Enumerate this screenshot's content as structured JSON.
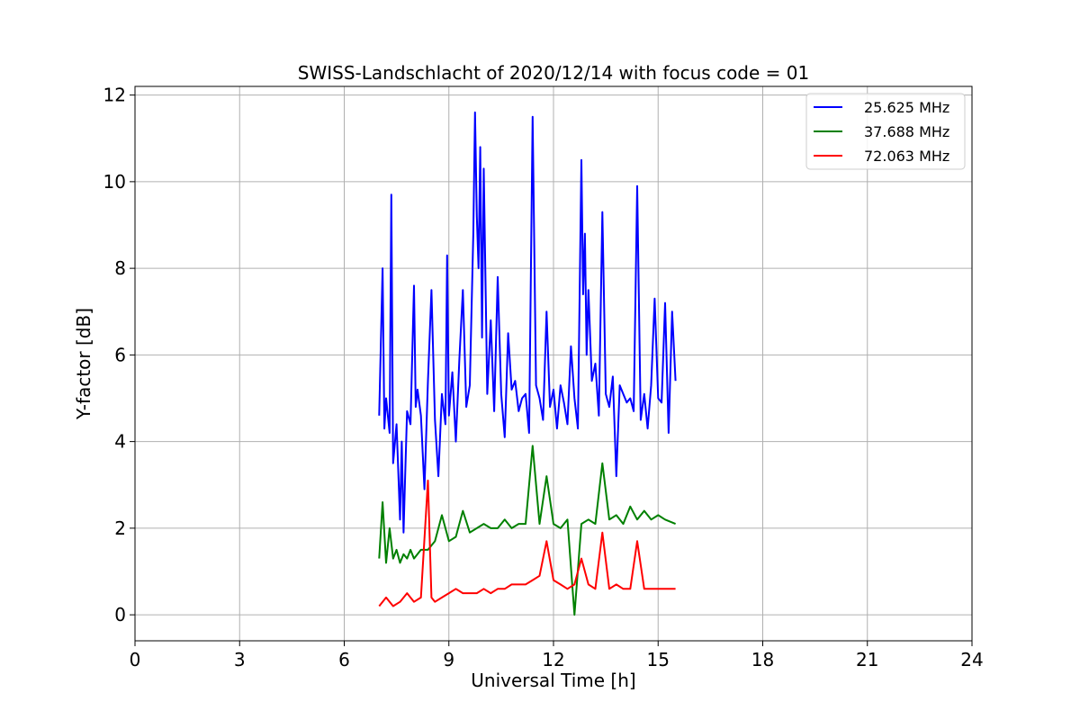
{
  "chart_data": {
    "type": "line",
    "title": "SWISS-Landschlacht of 2020/12/14 with focus code = 01",
    "xlabel": "Universal Time [h]",
    "ylabel": "Y-factor [dB]",
    "xlim": [
      0,
      24
    ],
    "ylim": [
      -0.6,
      12.2
    ],
    "xticks": [
      0,
      3,
      6,
      9,
      12,
      15,
      18,
      21,
      24
    ],
    "yticks": [
      0,
      2,
      4,
      6,
      8,
      10,
      12
    ],
    "grid": true,
    "legend_position": "top-right",
    "series": [
      {
        "name": "25.625 MHz",
        "color": "#0000ff",
        "x": [
          7.0,
          7.1,
          7.15,
          7.2,
          7.3,
          7.35,
          7.4,
          7.5,
          7.6,
          7.65,
          7.7,
          7.75,
          7.8,
          7.9,
          8.0,
          8.05,
          8.1,
          8.2,
          8.3,
          8.4,
          8.5,
          8.6,
          8.7,
          8.8,
          8.9,
          8.95,
          9.0,
          9.1,
          9.2,
          9.3,
          9.4,
          9.5,
          9.6,
          9.7,
          9.75,
          9.8,
          9.85,
          9.9,
          9.95,
          10.0,
          10.1,
          10.2,
          10.3,
          10.4,
          10.5,
          10.6,
          10.7,
          10.8,
          10.9,
          11.0,
          11.1,
          11.2,
          11.3,
          11.4,
          11.5,
          11.6,
          11.7,
          11.8,
          11.9,
          12.0,
          12.1,
          12.2,
          12.3,
          12.4,
          12.5,
          12.6,
          12.7,
          12.8,
          12.85,
          12.9,
          12.95,
          13.0,
          13.1,
          13.2,
          13.3,
          13.4,
          13.5,
          13.6,
          13.7,
          13.8,
          13.9,
          14.0,
          14.1,
          14.2,
          14.3,
          14.4,
          14.5,
          14.6,
          14.7,
          14.8,
          14.9,
          15.0,
          15.1,
          15.2,
          15.3,
          15.4,
          15.5
        ],
        "values": [
          4.6,
          8.0,
          4.3,
          5.0,
          4.2,
          9.7,
          3.5,
          4.4,
          2.2,
          4.0,
          1.9,
          3.3,
          4.7,
          4.4,
          7.6,
          4.8,
          5.2,
          4.6,
          2.9,
          5.4,
          7.5,
          4.5,
          3.2,
          5.1,
          4.4,
          8.3,
          4.6,
          5.6,
          4.0,
          5.9,
          7.5,
          4.8,
          5.3,
          8.8,
          11.6,
          9.2,
          8.0,
          10.8,
          6.4,
          10.3,
          5.1,
          6.8,
          4.7,
          7.8,
          5.1,
          4.1,
          6.5,
          5.2,
          5.4,
          4.7,
          5.0,
          5.1,
          4.2,
          11.5,
          5.3,
          5.0,
          4.5,
          7.0,
          4.8,
          5.2,
          4.3,
          5.3,
          4.9,
          4.4,
          6.2,
          5.0,
          4.3,
          10.5,
          7.4,
          8.8,
          6.0,
          7.5,
          5.4,
          5.8,
          4.6,
          9.3,
          5.1,
          4.8,
          5.5,
          3.2,
          5.3,
          5.1,
          4.9,
          5.0,
          4.7,
          9.9,
          4.5,
          5.1,
          4.3,
          5.3,
          7.3,
          5.0,
          4.9,
          7.2,
          4.2,
          7.0,
          5.4
        ]
      },
      {
        "name": "37.688 MHz",
        "color": "#008000",
        "x": [
          7.0,
          7.1,
          7.2,
          7.3,
          7.4,
          7.5,
          7.6,
          7.7,
          7.8,
          7.9,
          8.0,
          8.2,
          8.4,
          8.6,
          8.8,
          9.0,
          9.2,
          9.4,
          9.6,
          9.8,
          10.0,
          10.2,
          10.4,
          10.6,
          10.8,
          11.0,
          11.2,
          11.4,
          11.6,
          11.8,
          12.0,
          12.2,
          12.4,
          12.6,
          12.8,
          13.0,
          13.2,
          13.4,
          13.6,
          13.8,
          14.0,
          14.2,
          14.4,
          14.6,
          14.8,
          15.0,
          15.2,
          15.5
        ],
        "values": [
          1.3,
          2.6,
          1.2,
          2.0,
          1.3,
          1.5,
          1.2,
          1.4,
          1.3,
          1.5,
          1.3,
          1.5,
          1.5,
          1.7,
          2.3,
          1.7,
          1.8,
          2.4,
          1.9,
          2.0,
          2.1,
          2.0,
          2.0,
          2.2,
          2.0,
          2.1,
          2.1,
          3.9,
          2.1,
          3.2,
          2.1,
          2.0,
          2.2,
          0.0,
          2.1,
          2.2,
          2.1,
          3.5,
          2.2,
          2.3,
          2.1,
          2.5,
          2.2,
          2.4,
          2.2,
          2.3,
          2.2,
          2.1
        ]
      },
      {
        "name": "72.063 MHz",
        "color": "#ff0000",
        "x": [
          7.0,
          7.2,
          7.4,
          7.6,
          7.8,
          8.0,
          8.2,
          8.4,
          8.5,
          8.6,
          8.8,
          9.0,
          9.2,
          9.4,
          9.6,
          9.8,
          10.0,
          10.2,
          10.4,
          10.6,
          10.8,
          11.0,
          11.2,
          11.4,
          11.6,
          11.8,
          12.0,
          12.2,
          12.4,
          12.6,
          12.8,
          13.0,
          13.2,
          13.4,
          13.6,
          13.8,
          14.0,
          14.2,
          14.4,
          14.6,
          14.8,
          15.0,
          15.2,
          15.5
        ],
        "values": [
          0.2,
          0.4,
          0.2,
          0.3,
          0.5,
          0.3,
          0.4,
          3.1,
          0.4,
          0.3,
          0.4,
          0.5,
          0.6,
          0.5,
          0.5,
          0.5,
          0.6,
          0.5,
          0.6,
          0.6,
          0.7,
          0.7,
          0.7,
          0.8,
          0.9,
          1.7,
          0.8,
          0.7,
          0.6,
          0.7,
          1.3,
          0.7,
          0.6,
          1.9,
          0.6,
          0.7,
          0.6,
          0.6,
          1.7,
          0.6,
          0.6,
          0.6,
          0.6,
          0.6
        ]
      }
    ]
  }
}
